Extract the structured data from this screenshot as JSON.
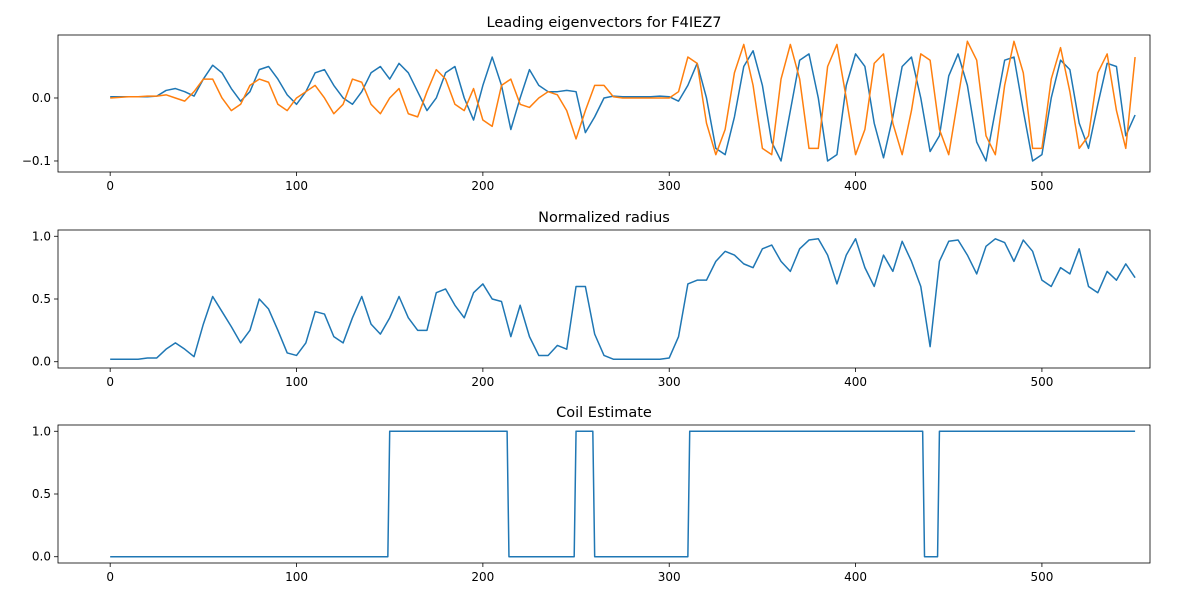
{
  "chart_data": [
    {
      "type": "line",
      "title": "Leading eigenvectors for F4IEZ7",
      "x": [
        0,
        5,
        10,
        15,
        20,
        25,
        30,
        35,
        40,
        45,
        50,
        55,
        60,
        65,
        70,
        75,
        80,
        85,
        90,
        95,
        100,
        105,
        110,
        115,
        120,
        125,
        130,
        135,
        140,
        145,
        150,
        155,
        160,
        165,
        170,
        175,
        180,
        185,
        190,
        195,
        200,
        205,
        210,
        215,
        220,
        225,
        230,
        235,
        240,
        245,
        250,
        255,
        260,
        265,
        270,
        275,
        280,
        285,
        290,
        295,
        300,
        305,
        310,
        315,
        320,
        325,
        330,
        335,
        340,
        345,
        350,
        355,
        360,
        365,
        370,
        375,
        380,
        385,
        390,
        395,
        400,
        405,
        410,
        415,
        420,
        425,
        430,
        435,
        440,
        445,
        450,
        455,
        460,
        465,
        470,
        475,
        480,
        485,
        490,
        495,
        500,
        505,
        510,
        515,
        520,
        525,
        530,
        535,
        540,
        545,
        550
      ],
      "series": [
        {
          "color": "#1f77b4",
          "values": [
            0.002,
            0.002,
            0.002,
            0.002,
            0.002,
            0.003,
            0.012,
            0.015,
            0.01,
            0.003,
            0.03,
            0.052,
            0.04,
            0.015,
            -0.005,
            0.01,
            0.045,
            0.05,
            0.03,
            0.005,
            -0.01,
            0.01,
            0.04,
            0.045,
            0.02,
            0.0,
            -0.01,
            0.01,
            0.04,
            0.05,
            0.03,
            0.055,
            0.04,
            0.01,
            -0.02,
            0.0,
            0.04,
            0.05,
            0.0,
            -0.035,
            0.02,
            0.065,
            0.02,
            -0.05,
            0.0,
            0.045,
            0.02,
            0.01,
            0.01,
            0.012,
            0.01,
            -0.055,
            -0.03,
            0.0,
            0.003,
            0.002,
            0.002,
            0.002,
            0.002,
            0.003,
            0.002,
            -0.005,
            0.02,
            0.055,
            0.0,
            -0.08,
            -0.09,
            -0.03,
            0.05,
            0.075,
            0.02,
            -0.07,
            -0.1,
            -0.02,
            0.06,
            0.07,
            0.0,
            -0.1,
            -0.09,
            0.02,
            0.07,
            0.05,
            -0.04,
            -0.095,
            -0.03,
            0.05,
            0.065,
            0.0,
            -0.085,
            -0.06,
            0.035,
            0.07,
            0.02,
            -0.07,
            -0.1,
            -0.02,
            0.06,
            0.065,
            -0.02,
            -0.1,
            -0.09,
            0.0,
            0.06,
            0.045,
            -0.04,
            -0.08,
            -0.01,
            0.055,
            0.05,
            -0.06,
            -0.027
          ]
        },
        {
          "color": "#ff7f0e",
          "values": [
            0.0,
            0.001,
            0.002,
            0.002,
            0.003,
            0.003,
            0.005,
            0.0,
            -0.005,
            0.01,
            0.03,
            0.03,
            0.0,
            -0.02,
            -0.01,
            0.02,
            0.03,
            0.025,
            -0.01,
            -0.02,
            0.0,
            0.01,
            0.02,
            0.0,
            -0.025,
            -0.01,
            0.03,
            0.025,
            -0.01,
            -0.025,
            0.0,
            0.015,
            -0.025,
            -0.03,
            0.01,
            0.045,
            0.03,
            -0.01,
            -0.02,
            0.015,
            -0.035,
            -0.045,
            0.02,
            0.03,
            -0.01,
            -0.015,
            0.0,
            0.01,
            0.005,
            -0.02,
            -0.065,
            -0.02,
            0.02,
            0.02,
            0.002,
            0.0,
            0.0,
            0.0,
            0.0,
            0.0,
            0.0,
            0.01,
            0.065,
            0.055,
            -0.04,
            -0.09,
            -0.05,
            0.04,
            0.085,
            0.02,
            -0.08,
            -0.09,
            0.03,
            0.085,
            0.03,
            -0.08,
            -0.08,
            0.05,
            0.085,
            0.0,
            -0.09,
            -0.05,
            0.055,
            0.07,
            -0.04,
            -0.09,
            -0.02,
            0.07,
            0.06,
            -0.05,
            -0.09,
            0.0,
            0.09,
            0.06,
            -0.06,
            -0.09,
            0.02,
            0.09,
            0.04,
            -0.08,
            -0.08,
            0.03,
            0.08,
            0.01,
            -0.08,
            -0.06,
            0.04,
            0.07,
            -0.02,
            -0.08,
            0.065
          ]
        }
      ],
      "xlim": [
        -28,
        558
      ],
      "ylim": [
        -0.1175,
        0.1
      ],
      "xticks": [
        0,
        100,
        200,
        300,
        400,
        500
      ],
      "yticks": [
        {
          "value": -0.1,
          "label": "−0.1"
        },
        {
          "value": 0,
          "label": "0.0"
        }
      ]
    },
    {
      "type": "line",
      "title": "Normalized radius",
      "x": [
        0,
        5,
        10,
        15,
        20,
        25,
        30,
        35,
        40,
        45,
        50,
        55,
        60,
        65,
        70,
        75,
        80,
        85,
        90,
        95,
        100,
        105,
        110,
        115,
        120,
        125,
        130,
        135,
        140,
        145,
        150,
        155,
        160,
        165,
        170,
        175,
        180,
        185,
        190,
        195,
        200,
        205,
        210,
        215,
        220,
        225,
        230,
        235,
        240,
        245,
        250,
        255,
        260,
        265,
        270,
        275,
        280,
        285,
        290,
        295,
        300,
        305,
        310,
        315,
        320,
        325,
        330,
        335,
        340,
        345,
        350,
        355,
        360,
        365,
        370,
        375,
        380,
        385,
        390,
        395,
        400,
        405,
        410,
        415,
        420,
        425,
        430,
        435,
        440,
        445,
        450,
        455,
        460,
        465,
        470,
        475,
        480,
        485,
        490,
        495,
        500,
        505,
        510,
        515,
        520,
        525,
        530,
        535,
        540,
        545,
        550
      ],
      "series": [
        {
          "color": "#1f77b4",
          "values": [
            0.02,
            0.02,
            0.02,
            0.02,
            0.03,
            0.03,
            0.1,
            0.15,
            0.1,
            0.04,
            0.3,
            0.52,
            0.4,
            0.28,
            0.15,
            0.25,
            0.5,
            0.42,
            0.25,
            0.07,
            0.05,
            0.15,
            0.4,
            0.38,
            0.2,
            0.15,
            0.35,
            0.52,
            0.3,
            0.22,
            0.35,
            0.52,
            0.35,
            0.25,
            0.25,
            0.55,
            0.58,
            0.45,
            0.35,
            0.55,
            0.62,
            0.5,
            0.48,
            0.2,
            0.45,
            0.2,
            0.05,
            0.05,
            0.13,
            0.1,
            0.6,
            0.6,
            0.22,
            0.05,
            0.02,
            0.02,
            0.02,
            0.02,
            0.02,
            0.02,
            0.03,
            0.2,
            0.62,
            0.65,
            0.65,
            0.8,
            0.88,
            0.85,
            0.78,
            0.75,
            0.9,
            0.93,
            0.8,
            0.72,
            0.9,
            0.97,
            0.98,
            0.85,
            0.62,
            0.85,
            0.98,
            0.75,
            0.6,
            0.85,
            0.72,
            0.96,
            0.8,
            0.6,
            0.12,
            0.8,
            0.96,
            0.97,
            0.85,
            0.7,
            0.92,
            0.98,
            0.95,
            0.8,
            0.97,
            0.88,
            0.65,
            0.6,
            0.75,
            0.7,
            0.9,
            0.6,
            0.55,
            0.72,
            0.65,
            0.78,
            0.67
          ]
        }
      ],
      "xlim": [
        -28,
        558
      ],
      "ylim": [
        -0.05,
        1.05
      ],
      "xticks": [
        0,
        100,
        200,
        300,
        400,
        500
      ],
      "yticks": [
        {
          "value": 0,
          "label": "0.0"
        },
        {
          "value": 0.5,
          "label": "0.5"
        },
        {
          "value": 1,
          "label": "1.0"
        }
      ]
    },
    {
      "type": "line",
      "title": "Coil Estimate",
      "x": [
        0,
        149,
        150,
        213,
        214,
        249,
        250,
        259,
        260,
        310,
        311,
        436,
        437,
        444,
        445,
        550
      ],
      "series": [
        {
          "color": "#1f77b4",
          "values": [
            0,
            0,
            1,
            1,
            0,
            0,
            1,
            1,
            0,
            0,
            1,
            1,
            0,
            0,
            1,
            1
          ]
        }
      ],
      "xlim": [
        -28,
        558
      ],
      "ylim": [
        -0.05,
        1.05
      ],
      "xticks": [
        0,
        100,
        200,
        300,
        400,
        500
      ],
      "yticks": [
        {
          "value": 0,
          "label": "0.0"
        },
        {
          "value": 0.5,
          "label": "0.5"
        },
        {
          "value": 1,
          "label": "1.0"
        }
      ]
    }
  ]
}
